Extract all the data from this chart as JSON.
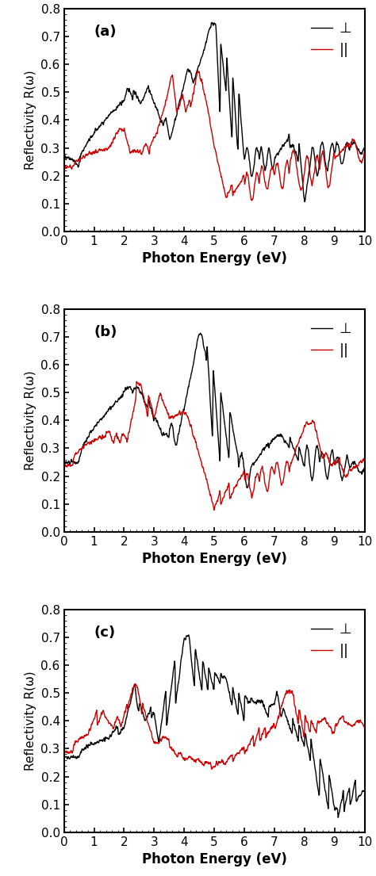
{
  "title_a": "(a)",
  "title_b": "(b)",
  "title_c": "(c)",
  "xlabel": "Photon Energy (eV)",
  "ylabel": "Reflectivity R(ω)",
  "xlim": [
    0,
    10
  ],
  "ylim": [
    0.0,
    0.8
  ],
  "yticks": [
    0.0,
    0.1,
    0.2,
    0.3,
    0.4,
    0.5,
    0.6,
    0.7,
    0.8
  ],
  "xticks": [
    0,
    1,
    2,
    3,
    4,
    5,
    6,
    7,
    8,
    9,
    10
  ],
  "legend_perp": "⊥",
  "legend_para": "||",
  "line_color_perp": "#000000",
  "line_color_para": "#cc0000",
  "linewidth": 1.0,
  "figsize": [
    4.74,
    11.05
  ],
  "dpi": 100
}
